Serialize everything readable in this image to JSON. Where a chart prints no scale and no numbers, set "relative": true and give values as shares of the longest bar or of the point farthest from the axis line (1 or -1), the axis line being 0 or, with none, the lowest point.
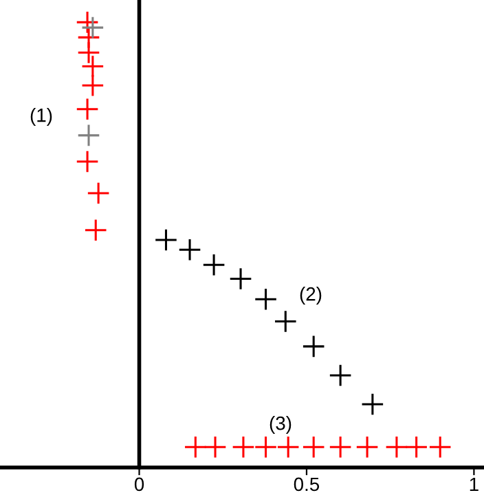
{
  "chart_data": {
    "type": "scatter",
    "relative": true,
    "marker": "cross",
    "xlim": [
      -0.416,
      1.03
    ],
    "xticks": [
      0,
      0.5,
      1
    ],
    "tick_labels": "x",
    "series": [
      {
        "color": "#ff0000",
        "x": [
          -0.155,
          -0.151,
          -0.151,
          -0.139,
          -0.139,
          -0.155,
          -0.155,
          -0.122,
          -0.13
        ],
        "values": [
          1.0,
          0.966,
          0.932,
          0.901,
          0.858,
          0.805,
          0.687,
          0.616,
          0.533
        ]
      },
      {
        "color": "#808080",
        "x": [
          -0.139,
          -0.151
        ],
        "values": [
          0.988,
          0.746
        ]
      },
      {
        "color": "#000000",
        "x": [
          0.08,
          0.151,
          0.223,
          0.303,
          0.378,
          0.437,
          0.521,
          0.601,
          0.697
        ],
        "values": [
          0.511,
          0.489,
          0.455,
          0.424,
          0.378,
          0.328,
          0.272,
          0.207,
          0.142
        ]
      },
      {
        "color": "#ff0000",
        "x": [
          0.168,
          0.227,
          0.311,
          0.378,
          0.445,
          0.521,
          0.601,
          0.681,
          0.769,
          0.828,
          0.899
        ],
        "values": [
          0.046,
          0.046,
          0.046,
          0.046,
          0.046,
          0.046,
          0.046,
          0.046,
          0.046,
          0.046,
          0.046
        ]
      }
    ],
    "annotations": [
      "(1)",
      "(2)",
      "(3)"
    ]
  }
}
